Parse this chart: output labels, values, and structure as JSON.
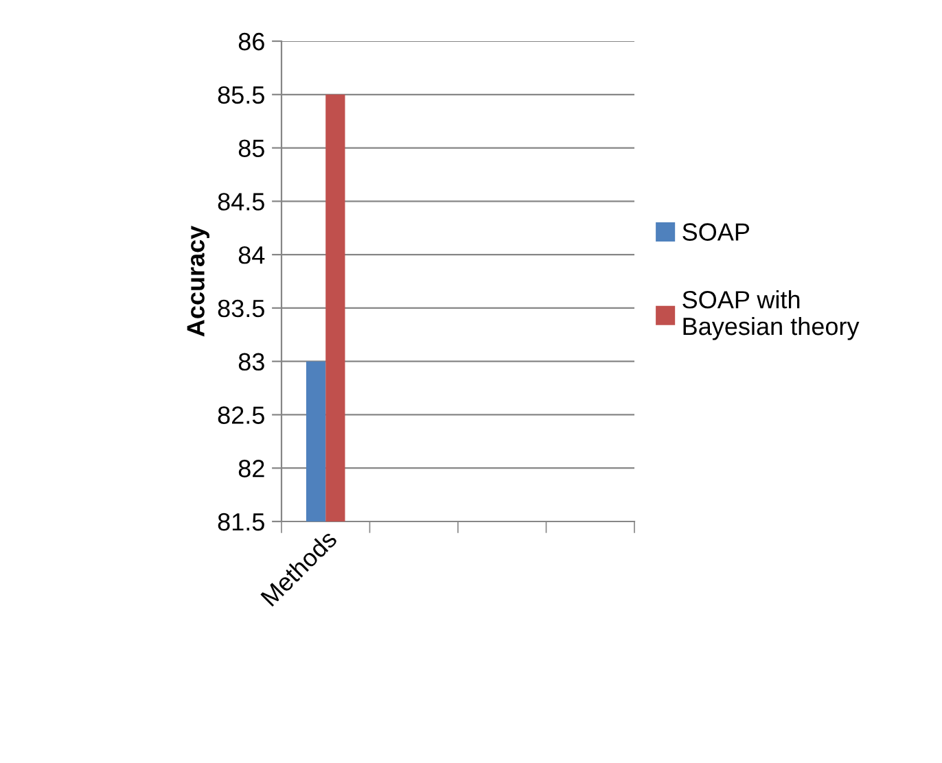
{
  "chart_data": {
    "type": "bar",
    "ylabel": "Accuracy",
    "categories": [
      "Methods",
      null,
      null,
      null
    ],
    "series": [
      {
        "name": "SOAP",
        "color": "#4f81bd",
        "values": [
          83,
          null,
          null,
          null
        ]
      },
      {
        "name": "SOAP with\nBayesian theory",
        "color": "#c0504d",
        "values": [
          85.5,
          null,
          null,
          null
        ]
      }
    ],
    "ylim": [
      81.5,
      86
    ],
    "yticks": [
      81.5,
      82,
      82.5,
      83,
      83.5,
      84,
      84.5,
      85,
      85.5,
      86
    ],
    "grid": "y",
    "legend": "right"
  }
}
